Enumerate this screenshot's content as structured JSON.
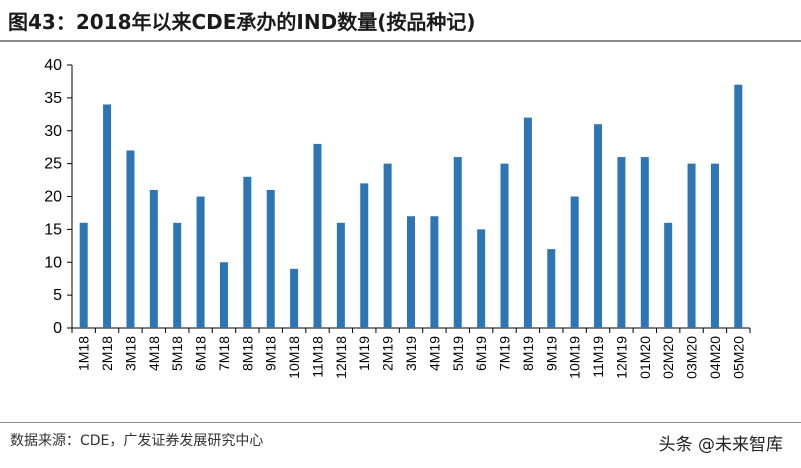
{
  "figure": {
    "title": "图43：2018年以来CDE承办的IND数量(按品种记)",
    "source": "数据来源：CDE，广发证券发展研究中心",
    "watermark": "头条 @未来智库"
  },
  "colors": {
    "bar": "#2E75B6",
    "axis": "#000000",
    "rule": "#8C8C8C"
  },
  "chart_data": {
    "type": "bar",
    "title": "图43：2018年以来CDE承办的IND数量(按品种记)",
    "xlabel": "",
    "ylabel": "",
    "ylim": [
      0,
      40
    ],
    "yticks": [
      0,
      5,
      10,
      15,
      20,
      25,
      30,
      35,
      40
    ],
    "grid": false,
    "categories": [
      "1M18",
      "2M18",
      "3M18",
      "4M18",
      "5M18",
      "6M18",
      "7M18",
      "8M18",
      "9M18",
      "10M18",
      "11M18",
      "12M18",
      "1M19",
      "2M19",
      "3M19",
      "4M19",
      "5M19",
      "6M19",
      "7M19",
      "8M19",
      "9M19",
      "10M19",
      "11M19",
      "12M19",
      "01M20",
      "02M20",
      "03M20",
      "04M20",
      "05M20"
    ],
    "values": [
      16,
      34,
      27,
      21,
      16,
      20,
      10,
      23,
      21,
      9,
      28,
      16,
      22,
      25,
      17,
      17,
      26,
      15,
      25,
      32,
      12,
      20,
      31,
      26,
      26,
      16,
      25,
      25,
      37
    ]
  }
}
